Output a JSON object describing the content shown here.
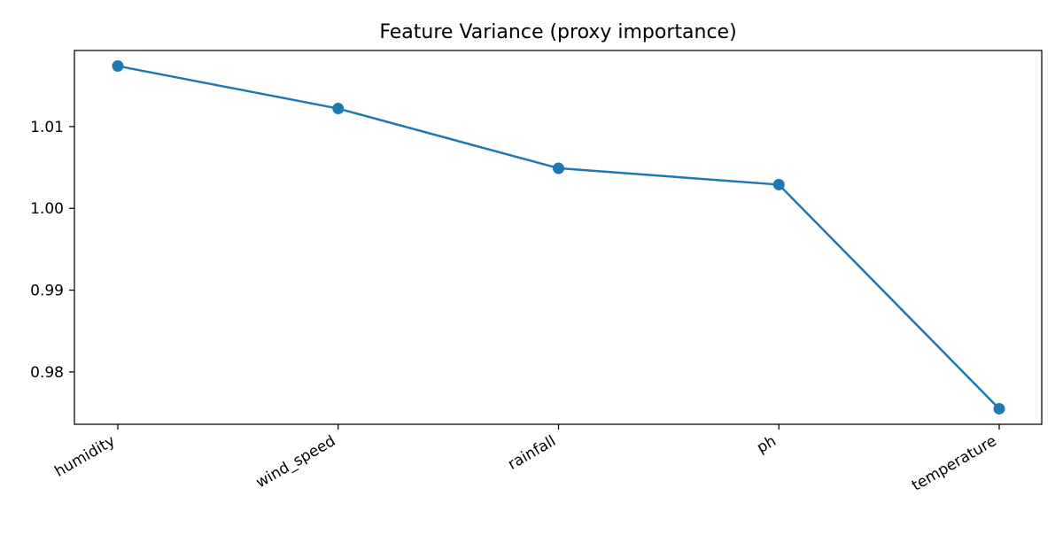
{
  "chart_data": {
    "type": "line",
    "title": "Feature Variance (proxy importance)",
    "xlabel": "",
    "ylabel": "",
    "categories": [
      "humidity",
      "wind_speed",
      "rainfall",
      "ph",
      "temperature"
    ],
    "series": [
      {
        "values": [
          1.0174,
          1.0122,
          1.0049,
          1.0029,
          0.9755
        ],
        "color": "#1f77b4",
        "marker": "circle"
      }
    ],
    "y_ticks": [
      0.98,
      0.99,
      1.0,
      1.01
    ],
    "y_tick_labels": [
      "0.98",
      "0.99",
      "1.00",
      "1.01"
    ],
    "ylim": [
      0.9736,
      1.0193
    ],
    "grid": false,
    "legend": "none"
  }
}
